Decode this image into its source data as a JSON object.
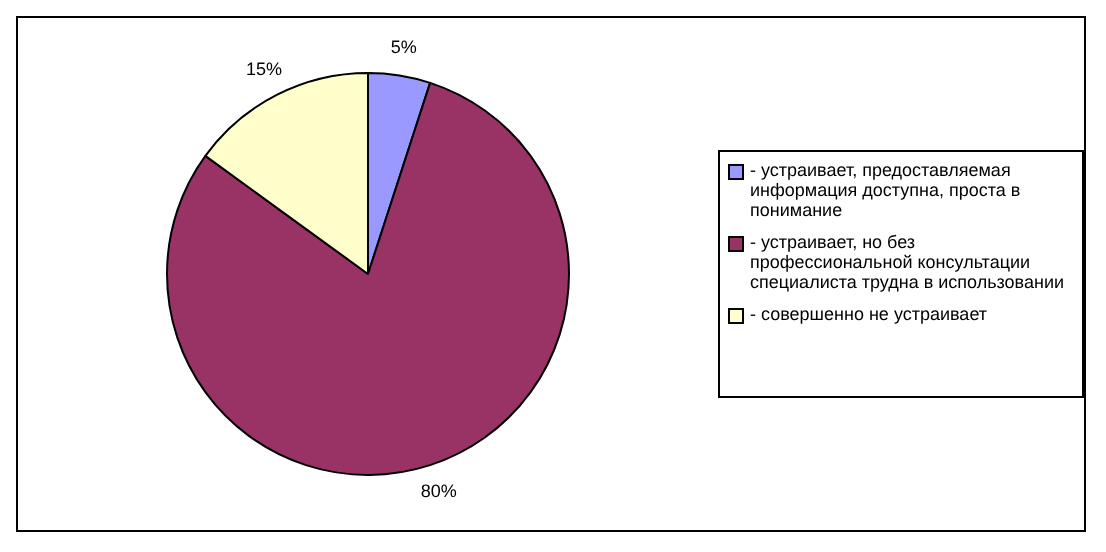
{
  "chart_data": {
    "type": "pie",
    "categories": [
      "- устраивает, предоставляемая информация доступна, проста в понимание",
      "- устраивает, но без профессиональной консультации специалиста трудна в использовании",
      "- совершенно не устраивает"
    ],
    "values": [
      5,
      80,
      15
    ],
    "colors": [
      "#9999ff",
      "#993366",
      "#ffffcc"
    ],
    "value_labels": [
      "5%",
      "80%",
      "15%"
    ],
    "legend": "right"
  }
}
